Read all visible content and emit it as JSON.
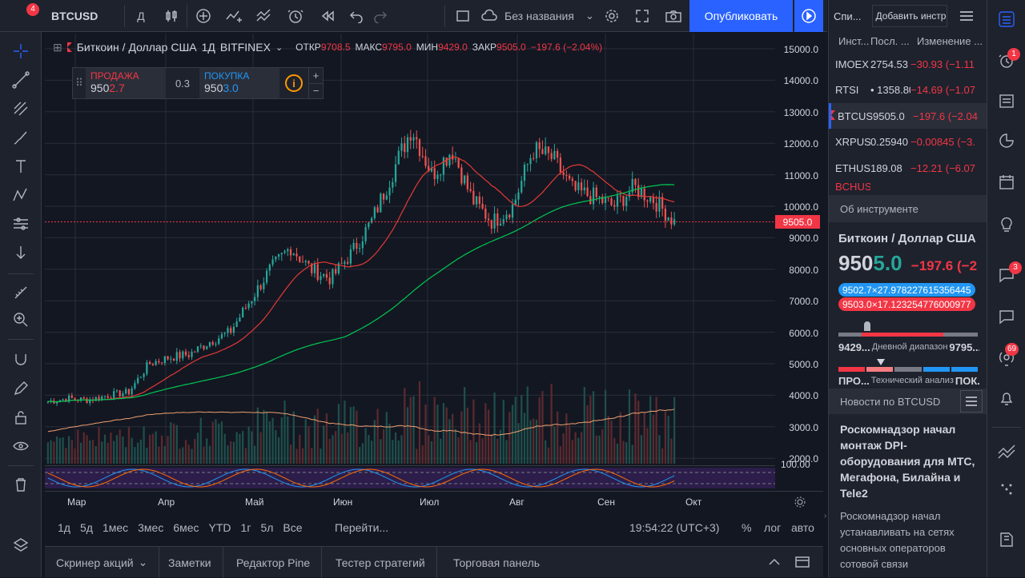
{
  "topbar": {
    "symbol": "BTCUSD",
    "symbol_badge": "4",
    "interval": "Д",
    "layout_name": "Без названия",
    "publish_label": "Опубликовать"
  },
  "legend": {
    "title": "Биткоин / Доллар США",
    "interval": "1Д",
    "exchange": "BITFINEX",
    "open_label": "ОТКР",
    "open": "9708.5",
    "high_label": "МАКС",
    "high": "9795.0",
    "low_label": "МИН",
    "low": "9429.0",
    "close_label": "ЗАКР",
    "close": "9505.0",
    "change": "−197.6 (−2.04%)"
  },
  "trade_widget": {
    "sell_label": "ПРОДАЖА",
    "sell_price_a": "950",
    "sell_price_b": "2.7",
    "spread": "0.3",
    "buy_label": "ПОКУПКА",
    "buy_price_a": "950",
    "buy_price_b": "3.0"
  },
  "price_axis": {
    "labels": [
      "15000.0",
      "14000.0",
      "13000.0",
      "12000.0",
      "11000.0",
      "10000.0",
      "9000.0",
      "8000.0",
      "7000.0",
      "6000.0",
      "5000.0",
      "4000.0",
      "3000.0",
      "2000.0"
    ],
    "current": "9505.0",
    "osc_label": "100.00"
  },
  "time_axis": [
    "Мар",
    "Апр",
    "Май",
    "Июн",
    "Июл",
    "Авг",
    "Сен",
    "Окт"
  ],
  "range_bar": {
    "ranges": [
      "1д",
      "5д",
      "1мес",
      "3мес",
      "6мес",
      "YTD",
      "1г",
      "5л",
      "Все"
    ],
    "goto": "Перейти...",
    "time": "19:54:22 (UTC+3)",
    "percent": "%",
    "log": "лог",
    "auto": "авто"
  },
  "bottom_tabs": [
    "Скринер акций",
    "Заметки",
    "Редактор Pine",
    "Тестер стратегий",
    "Торговая панель"
  ],
  "watchlist": {
    "header_tab": "Спи...",
    "add_placeholder": "Добавить инстр",
    "col_symbol": "Инст...",
    "col_last": "Посл. ...",
    "col_change": "Изменение ...",
    "rows": [
      {
        "symbol": "IMOEX",
        "last": "2754.53",
        "change": "−30.93 (−1.11"
      },
      {
        "symbol": "RTSI",
        "last": "• 1358.80",
        "change": "−14.69 (−1.07"
      },
      {
        "symbol": "BTCUS",
        "last": "9505.0",
        "change": "−197.6 (−2.04"
      },
      {
        "symbol": "XRPUS",
        "last": "0.25940",
        "change": "−0.00845 (−3."
      },
      {
        "symbol": "ETHUS",
        "last": "189.08",
        "change": "−12.21 (−6.07"
      },
      {
        "symbol": "BCHUS",
        "last": "",
        "change": ""
      }
    ]
  },
  "details": {
    "header": "Об инструменте",
    "name": "Биткоин / Доллар США",
    "price_a": "950",
    "price_b": "5.0",
    "change": "−197.6 (−2",
    "bid": "9502.7×27.978227615356445",
    "ask": "9503.0×17.123254776000977",
    "low": "9429...",
    "range_label": "Дневной диапазон",
    "high": "9795...",
    "sell": "ПРО...",
    "tech_label": "Технический анализ",
    "buy": "ПОК..."
  },
  "news": {
    "header": "Новости по BTCUSD",
    "headline": "Роскомнадзор начал монтаж DPI-оборудования для МТС, Мегафона, Билайна и Tele2",
    "body": "Роскомнадзор начал устанавливать на сетях основных операторов сотовой связи"
  },
  "far_right_badges": {
    "alerts": "1",
    "chats": "3",
    "ideas": "69"
  },
  "colors": {
    "up": "#26a69a",
    "down": "#ef5350",
    "ma_short": "#e53935",
    "ma_long": "#00c853",
    "accent": "#2962ff",
    "bg": "#131722"
  },
  "chart_data": {
    "type": "candlestick",
    "series": [
      {
        "name": "short MA",
        "color": "#e53935"
      },
      {
        "name": "long MA",
        "color": "#00c853"
      }
    ],
    "closes_sample": [
      3800,
      3900,
      3850,
      4000,
      4100,
      5000,
      5200,
      5300,
      5700,
      6000,
      7000,
      8000,
      8700,
      8000,
      7700,
      8500,
      9500,
      11000,
      12500,
      11000,
      11800,
      10200,
      9500,
      10000,
      11800,
      11500,
      10500,
      10300,
      10000,
      10600,
      10200,
      9500
    ],
    "ylim": [
      2000,
      15000
    ],
    "xlabels": [
      "Мар",
      "Апр",
      "Май",
      "Июн",
      "Июл",
      "Авг",
      "Сен",
      "Окт"
    ]
  }
}
